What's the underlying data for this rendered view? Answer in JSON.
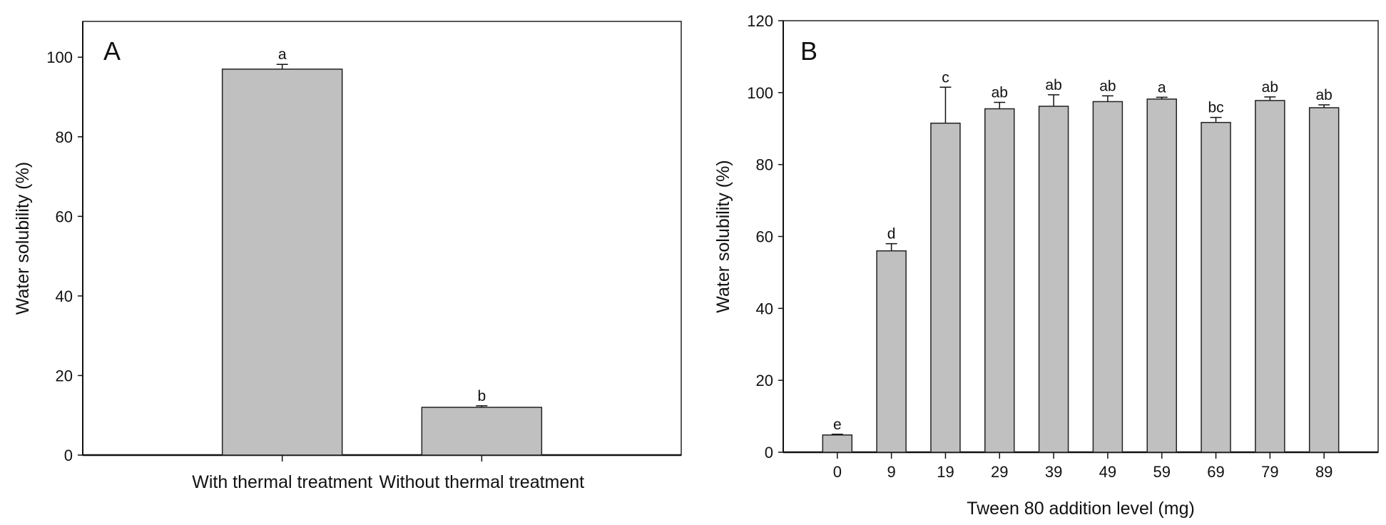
{
  "chart_data": [
    {
      "type": "bar",
      "panel_label": "A",
      "title": "",
      "xlabel": "",
      "ylabel": "Water solubility (%)",
      "categories": [
        "With thermal treatment",
        "Without thermal treatment"
      ],
      "values": [
        97.0,
        12.0
      ],
      "errors": [
        1.2,
        0.4
      ],
      "significance": [
        "a",
        "b"
      ],
      "ylim": [
        0,
        109
      ],
      "yticks": [
        0,
        20,
        40,
        60,
        80,
        100
      ],
      "grid": false,
      "bar_color": "#c0c0c0"
    },
    {
      "type": "bar",
      "panel_label": "B",
      "title": "",
      "xlabel": "Tween 80 addition level (mg)",
      "ylabel": "Water solubility (%)",
      "categories": [
        "0",
        "9",
        "19",
        "29",
        "39",
        "49",
        "59",
        "69",
        "79",
        "89"
      ],
      "values": [
        4.8,
        56.0,
        91.5,
        95.5,
        96.2,
        97.5,
        98.2,
        91.7,
        97.8,
        95.8
      ],
      "errors": [
        0.2,
        2.0,
        10.0,
        1.8,
        3.2,
        1.6,
        0.5,
        1.4,
        1.0,
        0.8
      ],
      "significance": [
        "e",
        "d",
        "c",
        "ab",
        "ab",
        "ab",
        "a",
        "bc",
        "ab",
        "ab"
      ],
      "ylim": [
        0,
        120
      ],
      "yticks": [
        0,
        20,
        40,
        60,
        80,
        100,
        120
      ],
      "grid": false,
      "bar_color": "#c0c0c0"
    }
  ]
}
